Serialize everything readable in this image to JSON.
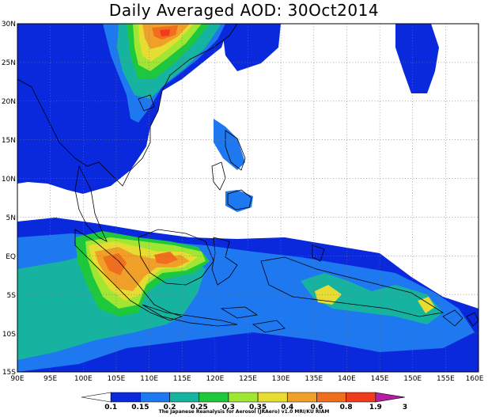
{
  "title": "Daily Averaged AOD: 30Oct2014",
  "map": {
    "lon_range": [
      90,
      160
    ],
    "lat_range": [
      -15,
      30
    ],
    "lon_labels": [
      "90E",
      "95E",
      "100E",
      "105E",
      "110E",
      "115E",
      "120E",
      "125E",
      "130E",
      "135E",
      "140E",
      "145E",
      "150E",
      "155E",
      "160E"
    ],
    "lat_labels": [
      "30N",
      "25N",
      "20N",
      "15N",
      "10N",
      "5N",
      "EQ",
      "5S",
      "10S",
      "15S"
    ],
    "gridlines": "dotted every 5 degrees"
  },
  "colorbar": {
    "levels": [
      "0.1",
      "0.15",
      "0.2",
      "0.25",
      "0.3",
      "0.35",
      "0.4",
      "0.6",
      "0.8",
      "1.9",
      "3"
    ],
    "colors": [
      "#ffffff",
      "#0a28dc",
      "#1e78f0",
      "#16b4a0",
      "#1ec83c",
      "#a0e632",
      "#e6dc32",
      "#f0a028",
      "#f06e1e",
      "#f03c1e",
      "#b41ea0"
    ]
  },
  "credit": "The Japanese Reanalysis for Aerosol (JRAero) v1.0 MRI/KU RIAM"
}
